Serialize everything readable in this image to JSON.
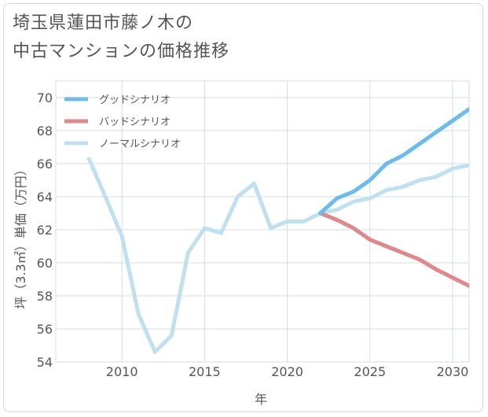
{
  "title_lines": [
    "埼玉県蓮田市藤ノ木の",
    "中古マンションの価格推移"
  ],
  "chart_data": {
    "type": "line",
    "title": "埼玉県蓮田市藤ノ木の中古マンションの価格推移",
    "xlabel": "年",
    "ylabel": "坪（3.3㎡）単価（万円）",
    "xlim": [
      2006,
      2031
    ],
    "ylim": [
      54,
      71
    ],
    "x_ticks": [
      2010,
      2015,
      2020,
      2025,
      2030
    ],
    "y_ticks": [
      54,
      56,
      58,
      60,
      62,
      64,
      66,
      68,
      70
    ],
    "grid": true,
    "legend_position": "top-left",
    "series": [
      {
        "name": "グッドシナリオ",
        "color": "#6bbbef",
        "x": [
          2022,
          2023,
          2024,
          2025,
          2026,
          2027,
          2028,
          2029,
          2030,
          2031
        ],
        "y": [
          63.0,
          63.9,
          64.3,
          65.0,
          66.0,
          66.5,
          67.2,
          67.9,
          68.6,
          69.3
        ]
      },
      {
        "name": "バッドシナリオ",
        "color": "#e0878c",
        "x": [
          2022,
          2023,
          2024,
          2025,
          2026,
          2027,
          2028,
          2029,
          2030,
          2031
        ],
        "y": [
          63.0,
          62.6,
          62.1,
          61.4,
          61.0,
          60.6,
          60.2,
          59.6,
          59.1,
          58.6
        ]
      },
      {
        "name": "ノーマルシナリオ",
        "color": "#bfe0ef",
        "x": [
          2008,
          2009,
          2010,
          2011,
          2012,
          2013,
          2014,
          2015,
          2016,
          2017,
          2018,
          2019,
          2020,
          2021,
          2022,
          2023,
          2024,
          2025,
          2026,
          2027,
          2028,
          2029,
          2030,
          2031
        ],
        "y": [
          66.3,
          64.0,
          61.6,
          56.9,
          54.6,
          55.6,
          60.6,
          62.1,
          61.8,
          64.0,
          64.8,
          62.1,
          62.5,
          62.5,
          63.0,
          63.2,
          63.7,
          63.9,
          64.4,
          64.6,
          65.0,
          65.2,
          65.7,
          65.9
        ]
      }
    ]
  }
}
